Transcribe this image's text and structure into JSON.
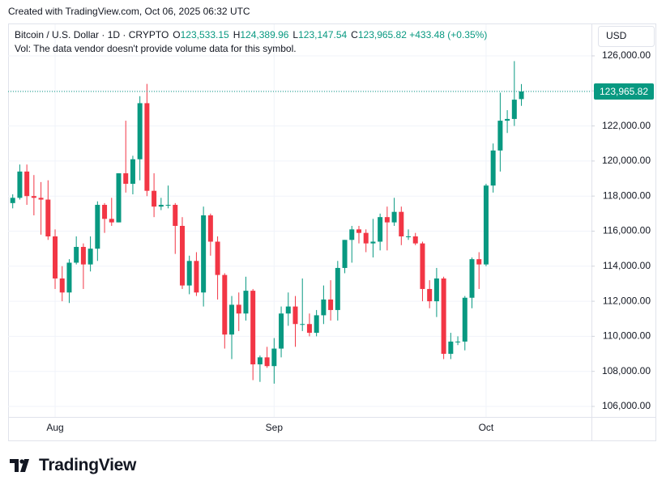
{
  "created": "Created with TradingView.com, Oct 06, 2025 06:32 UTC",
  "brand": "TradingView",
  "chart_data": {
    "type": "candlestick",
    "symbol": "Bitcoin / U.S. Dollar · 1D · CRYPTO",
    "ohlc_legend": [
      {
        "label": "O",
        "value": "123,533.15"
      },
      {
        "label": "H",
        "value": "124,389.96"
      },
      {
        "label": "L",
        "value": "123,147.54"
      },
      {
        "label": "C",
        "value": "123,965.82"
      }
    ],
    "change": "+433.48 (+0.35%)",
    "volume_note": "Vol: The data vendor doesn't provide volume data for this symbol.",
    "currency": "USD",
    "up_color": "#089981",
    "down_color": "#f23645",
    "categories": [
      null,
      null,
      null,
      null,
      null,
      null,
      "Aug",
      null,
      null,
      null,
      null,
      null,
      null,
      null,
      null,
      null,
      null,
      null,
      null,
      null,
      null,
      null,
      null,
      null,
      null,
      null,
      null,
      null,
      null,
      null,
      null,
      null,
      null,
      null,
      null,
      null,
      null,
      "Sep",
      null,
      null,
      null,
      null,
      null,
      null,
      null,
      null,
      null,
      null,
      null,
      null,
      null,
      null,
      null,
      null,
      null,
      null,
      null,
      null,
      null,
      null,
      null,
      null,
      null,
      null,
      null,
      null,
      null,
      "Oct",
      null,
      null,
      null,
      null,
      null
    ],
    "open": [
      117600,
      117900,
      119400,
      118000,
      117900,
      117800,
      115700,
      113300,
      112500,
      114200,
      115100,
      114100,
      115000,
      117500,
      116700,
      116500,
      119300,
      118700,
      120100,
      123300,
      118300,
      117400,
      117500,
      117500,
      116300,
      112900,
      114300,
      112500,
      116900,
      115400,
      113500,
      110100,
      111800,
      111300,
      112600,
      108400,
      108800,
      108300,
      109300,
      111300,
      111700,
      110700,
      110700,
      110200,
      111200,
      112100,
      111500,
      113900,
      115500,
      116100,
      115900,
      115300,
      115400,
      116800,
      116500,
      117100,
      115700,
      115700,
      115300,
      112700,
      112000,
      113300,
      109000,
      109700,
      109700,
      112200,
      114400,
      114100,
      118600,
      120600,
      122300,
      122400,
      123533.15
    ],
    "high": [
      118100,
      119800,
      119800,
      119200,
      118800,
      118900,
      116100,
      114000,
      114400,
      115700,
      115300,
      115700,
      117700,
      117600,
      117900,
      119300,
      122300,
      120300,
      123700,
      124400,
      119300,
      117900,
      118600,
      117600,
      116800,
      114600,
      114800,
      117400,
      117000,
      115700,
      113600,
      112300,
      112500,
      113400,
      112700,
      108900,
      109400,
      109900,
      111700,
      112500,
      112300,
      113300,
      111300,
      111500,
      112900,
      113200,
      114300,
      115500,
      116300,
      116300,
      116100,
      116700,
      117000,
      117400,
      117900,
      117400,
      116100,
      115900,
      115400,
      113200,
      113900,
      113400,
      110200,
      110000,
      112300,
      114500,
      114800,
      118700,
      121000,
      123900,
      122900,
      125700,
      124389.96
    ],
    "low": [
      117300,
      117800,
      117500,
      116900,
      115800,
      115500,
      112700,
      112000,
      111900,
      114100,
      112700,
      113700,
      114300,
      115900,
      116300,
      116500,
      118200,
      118100,
      118900,
      118000,
      116800,
      117200,
      117300,
      114700,
      112700,
      112400,
      112300,
      111700,
      114600,
      112100,
      109300,
      108700,
      110300,
      110900,
      107500,
      107400,
      108200,
      107300,
      108800,
      110600,
      109400,
      110300,
      110000,
      110000,
      110700,
      110900,
      110900,
      113600,
      114200,
      115300,
      114800,
      114500,
      114900,
      114900,
      116300,
      115200,
      115500,
      115200,
      112000,
      111600,
      111100,
      108700,
      108700,
      109500,
      109200,
      111600,
      112700,
      114000,
      118200,
      119400,
      121600,
      122000,
      123147.54
    ],
    "close": [
      117900,
      119400,
      118000,
      117900,
      117800,
      115700,
      113300,
      112500,
      114200,
      115100,
      114100,
      115000,
      117500,
      116700,
      116500,
      119300,
      118700,
      120100,
      123300,
      118300,
      117400,
      117500,
      117500,
      116300,
      112900,
      114300,
      112500,
      116900,
      115400,
      113500,
      110100,
      111800,
      111300,
      112600,
      108400,
      108800,
      108300,
      109300,
      111300,
      111700,
      110700,
      110700,
      110200,
      111200,
      112100,
      111500,
      113900,
      115500,
      116100,
      115900,
      115300,
      115400,
      116800,
      116500,
      117100,
      115700,
      115700,
      115300,
      112700,
      112000,
      113300,
      109000,
      109700,
      109700,
      112200,
      114400,
      114100,
      118600,
      120600,
      122300,
      122400,
      123500,
      123965.82
    ],
    "last_price": {
      "value": 123965.82,
      "label": "123,965.82"
    },
    "ylim": [
      105400,
      127800
    ],
    "yticks": [
      {
        "value": 106000,
        "label": "106,000.00"
      },
      {
        "value": 108000,
        "label": "108,000.00"
      },
      {
        "value": 110000,
        "label": "110,000.00"
      },
      {
        "value": 112000,
        "label": "112,000.00"
      },
      {
        "value": 114000,
        "label": "114,000.00"
      },
      {
        "value": 116000,
        "label": "116,000.00"
      },
      {
        "value": 118000,
        "label": "118,000.00"
      },
      {
        "value": 120000,
        "label": "120,000.00"
      },
      {
        "value": 122000,
        "label": "122,000.00"
      },
      {
        "value": 124000,
        "label": "124,000.00"
      },
      {
        "value": 126000,
        "label": "126,000.00"
      }
    ],
    "grid": true
  }
}
